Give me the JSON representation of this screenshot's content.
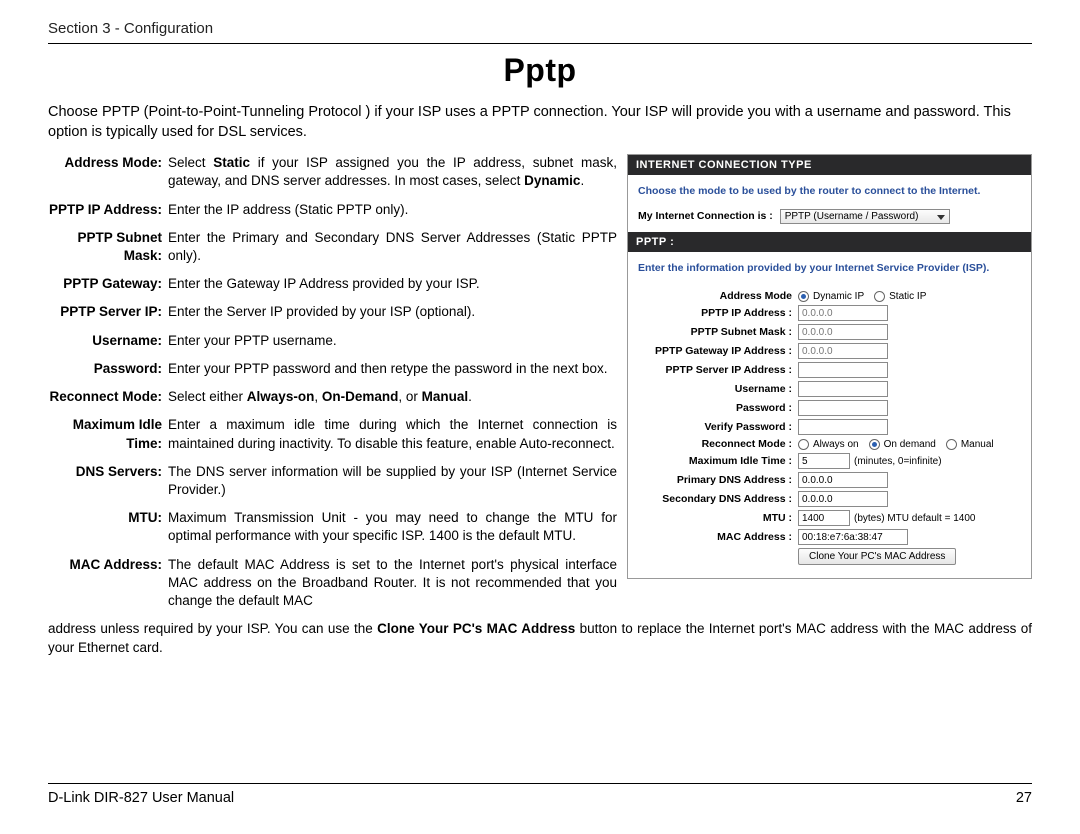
{
  "header": {
    "section": "Section 3 - Configuration"
  },
  "title": "Pptp",
  "intro": "Choose PPTP (Point-to-Point-Tunneling Protocol ) if your ISP uses a PPTP connection. Your ISP will provide you with a username and password. This option is typically used for DSL services.",
  "definitions": [
    {
      "term": "Address Mode:",
      "parts": [
        {
          "t": "Select ",
          "b": false
        },
        {
          "t": "Static",
          "b": true
        },
        {
          "t": " if your ISP assigned you the IP address, subnet mask, gateway, and DNS server addresses. In most cases, select ",
          "b": false
        },
        {
          "t": "Dynamic",
          "b": true
        },
        {
          "t": ".",
          "b": false
        }
      ]
    },
    {
      "term": "PPTP IP Address:",
      "parts": [
        {
          "t": "Enter the IP address (Static PPTP only).",
          "b": false
        }
      ]
    },
    {
      "term": "PPTP Subnet Mask:",
      "parts": [
        {
          "t": "Enter the Primary and Secondary DNS Server Addresses (Static PPTP only).",
          "b": false
        }
      ]
    },
    {
      "term": "PPTP Gateway:",
      "parts": [
        {
          "t": "Enter the Gateway IP Address provided by your ISP.",
          "b": false
        }
      ]
    },
    {
      "term": "PPTP Server IP:",
      "parts": [
        {
          "t": "Enter the Server IP provided by your ISP (optional).",
          "b": false
        }
      ]
    },
    {
      "term": "Username:",
      "parts": [
        {
          "t": "Enter your PPTP username.",
          "b": false
        }
      ]
    },
    {
      "term": "Password:",
      "parts": [
        {
          "t": "Enter your PPTP password and then retype the password in the next box.",
          "b": false
        }
      ]
    },
    {
      "term": "Reconnect Mode:",
      "parts": [
        {
          "t": "Select either ",
          "b": false
        },
        {
          "t": "Always-on",
          "b": true
        },
        {
          "t": ", ",
          "b": false
        },
        {
          "t": "On-Demand",
          "b": true
        },
        {
          "t": ", or ",
          "b": false
        },
        {
          "t": "Manual",
          "b": true
        },
        {
          "t": ".",
          "b": false
        }
      ]
    },
    {
      "term": "Maximum Idle Time:",
      "parts": [
        {
          "t": "Enter a maximum idle time during which the Internet connection is maintained during inactivity. To disable this feature, enable Auto-reconnect.",
          "b": false
        }
      ]
    },
    {
      "term": "DNS Servers:",
      "parts": [
        {
          "t": "The DNS server information will be supplied by your ISP (Internet Service Provider.)",
          "b": false
        }
      ]
    },
    {
      "term": "MTU:",
      "parts": [
        {
          "t": "Maximum Transmission Unit - you may need to change the MTU for optimal performance with your specific ISP. 1400 is the default MTU.",
          "b": false
        }
      ]
    },
    {
      "term": "MAC Address:",
      "parts": [
        {
          "t": "The default MAC Address is set to the Internet port's physical interface MAC address on the Broadband Router. It is not recommended that you change the default MAC",
          "b": false
        }
      ]
    }
  ],
  "continuation_parts": [
    {
      "t": "address unless required by your ISP. You can use the ",
      "b": false
    },
    {
      "t": "Clone Your PC's MAC Address",
      "b": true
    },
    {
      "t": " button to replace the Internet port's MAC address with the MAC address of your Ethernet card.",
      "b": false
    }
  ],
  "panel": {
    "hdr1": "INTERNET CONNECTION TYPE",
    "hint1": "Choose the mode to be used by the router to connect to the Internet.",
    "conn_label": "My Internet Connection is :",
    "conn_value": "PPTP (Username / Password)",
    "hdr2": "PPTP :",
    "hint2": "Enter the information provided by your Internet Service Provider (ISP).",
    "rows": {
      "address_mode": "Address Mode",
      "dynamic": "Dynamic IP",
      "static": "Static IP",
      "ip": "PPTP IP Address :",
      "mask": "PPTP Subnet Mask :",
      "gw": "PPTP Gateway IP Address :",
      "srv": "PPTP Server IP Address :",
      "user": "Username :",
      "pass": "Password :",
      "vpass": "Verify Password :",
      "rmode": "Reconnect Mode :",
      "always": "Always on",
      "ondemand": "On demand",
      "manual": "Manual",
      "idle": "Maximum Idle Time :",
      "idle_val": "5",
      "idle_suffix": "(minutes, 0=infinite)",
      "pdns": "Primary DNS Address :",
      "sdns": "Secondary DNS Address :",
      "mtu": "MTU :",
      "mtu_val": "1400",
      "mtu_suffix": "(bytes) MTU default = 1400",
      "mac": "MAC Address :",
      "mac_val": "00:18:e7:6a:38:47",
      "zeros": "0.0.0.0",
      "clone_btn": "Clone Your PC's MAC Address"
    }
  },
  "footer": {
    "manual": "D-Link DIR-827 User Manual",
    "page": "27"
  },
  "colors": {
    "link_blue": "#2a4f9a",
    "header_bg": "#29292b"
  }
}
